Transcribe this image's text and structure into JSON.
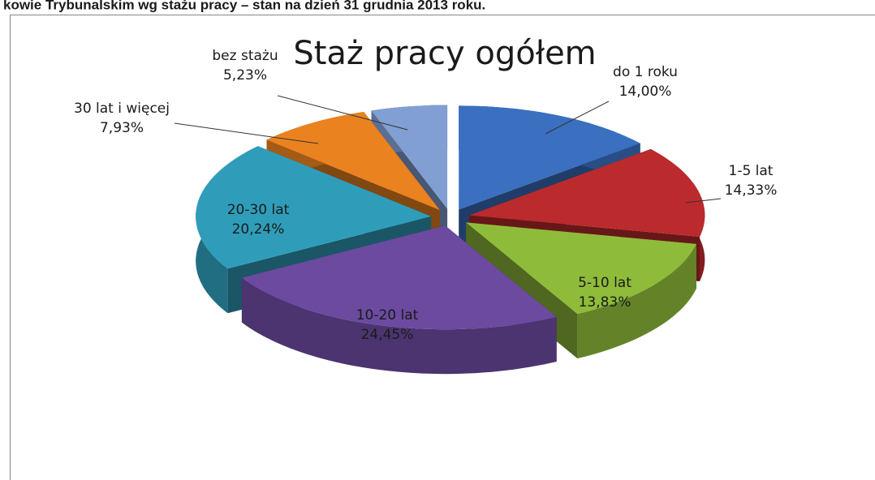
{
  "caption": "kowie Trybunalskim wg stażu pracy – stan na dzień 31 grudnia 2013 roku.",
  "chart_data": {
    "type": "pie3d",
    "title": "Staż pracy ogółem",
    "categories": [
      "do 1 roku",
      "1-5 lat",
      "5-10 lat",
      "10-20 lat",
      "20-30 lat",
      "30 lat i więcej",
      "bez stażu"
    ],
    "values": [
      14.0,
      14.33,
      13.83,
      24.45,
      20.24,
      7.93,
      5.23
    ],
    "value_labels": [
      "14,00%",
      "14,33%",
      "13,83%",
      "24,45%",
      "20,24%",
      "7,93%",
      "5,23%"
    ],
    "colors": [
      "#3b6fc0",
      "#bb2a2c",
      "#8fbb3a",
      "#6b4aa0",
      "#2f9dba",
      "#ea821f",
      "#819fd2"
    ]
  }
}
